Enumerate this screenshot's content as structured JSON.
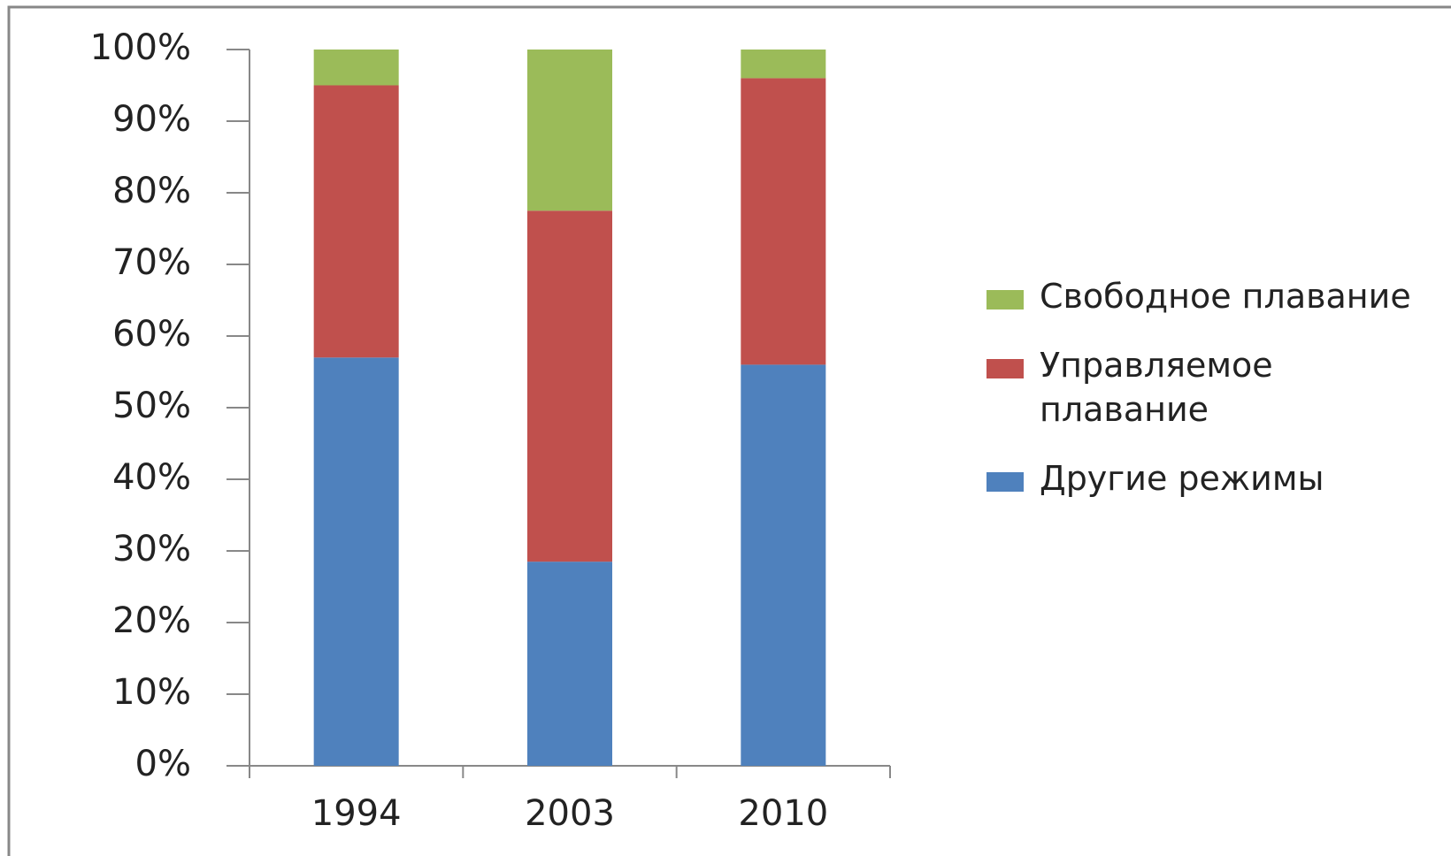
{
  "chart_data": {
    "type": "stacked_bar",
    "categories": [
      "1994",
      "2003",
      "2010"
    ],
    "series": [
      {
        "name": "Другие режимы",
        "color": "#4f81bd",
        "values": [
          57,
          28.5,
          56
        ]
      },
      {
        "name": "Управляемое плавание",
        "color": "#c0504d",
        "values": [
          38,
          49,
          40
        ]
      },
      {
        "name": "Свободное плавание",
        "color": "#9bbb59",
        "values": [
          5,
          22.5,
          4
        ]
      }
    ],
    "ylim": [
      0,
      100
    ],
    "yticks": [
      {
        "value": 0,
        "label": "0%"
      },
      {
        "value": 10,
        "label": "10%"
      },
      {
        "value": 20,
        "label": "20%"
      },
      {
        "value": 30,
        "label": "30%"
      },
      {
        "value": 40,
        "label": "40%"
      },
      {
        "value": 50,
        "label": "50%"
      },
      {
        "value": 60,
        "label": "60%"
      },
      {
        "value": 70,
        "label": "70%"
      },
      {
        "value": 80,
        "label": "80%"
      },
      {
        "value": 90,
        "label": "90%"
      },
      {
        "value": 100,
        "label": "100%"
      }
    ],
    "grid": false,
    "legend": "right"
  }
}
